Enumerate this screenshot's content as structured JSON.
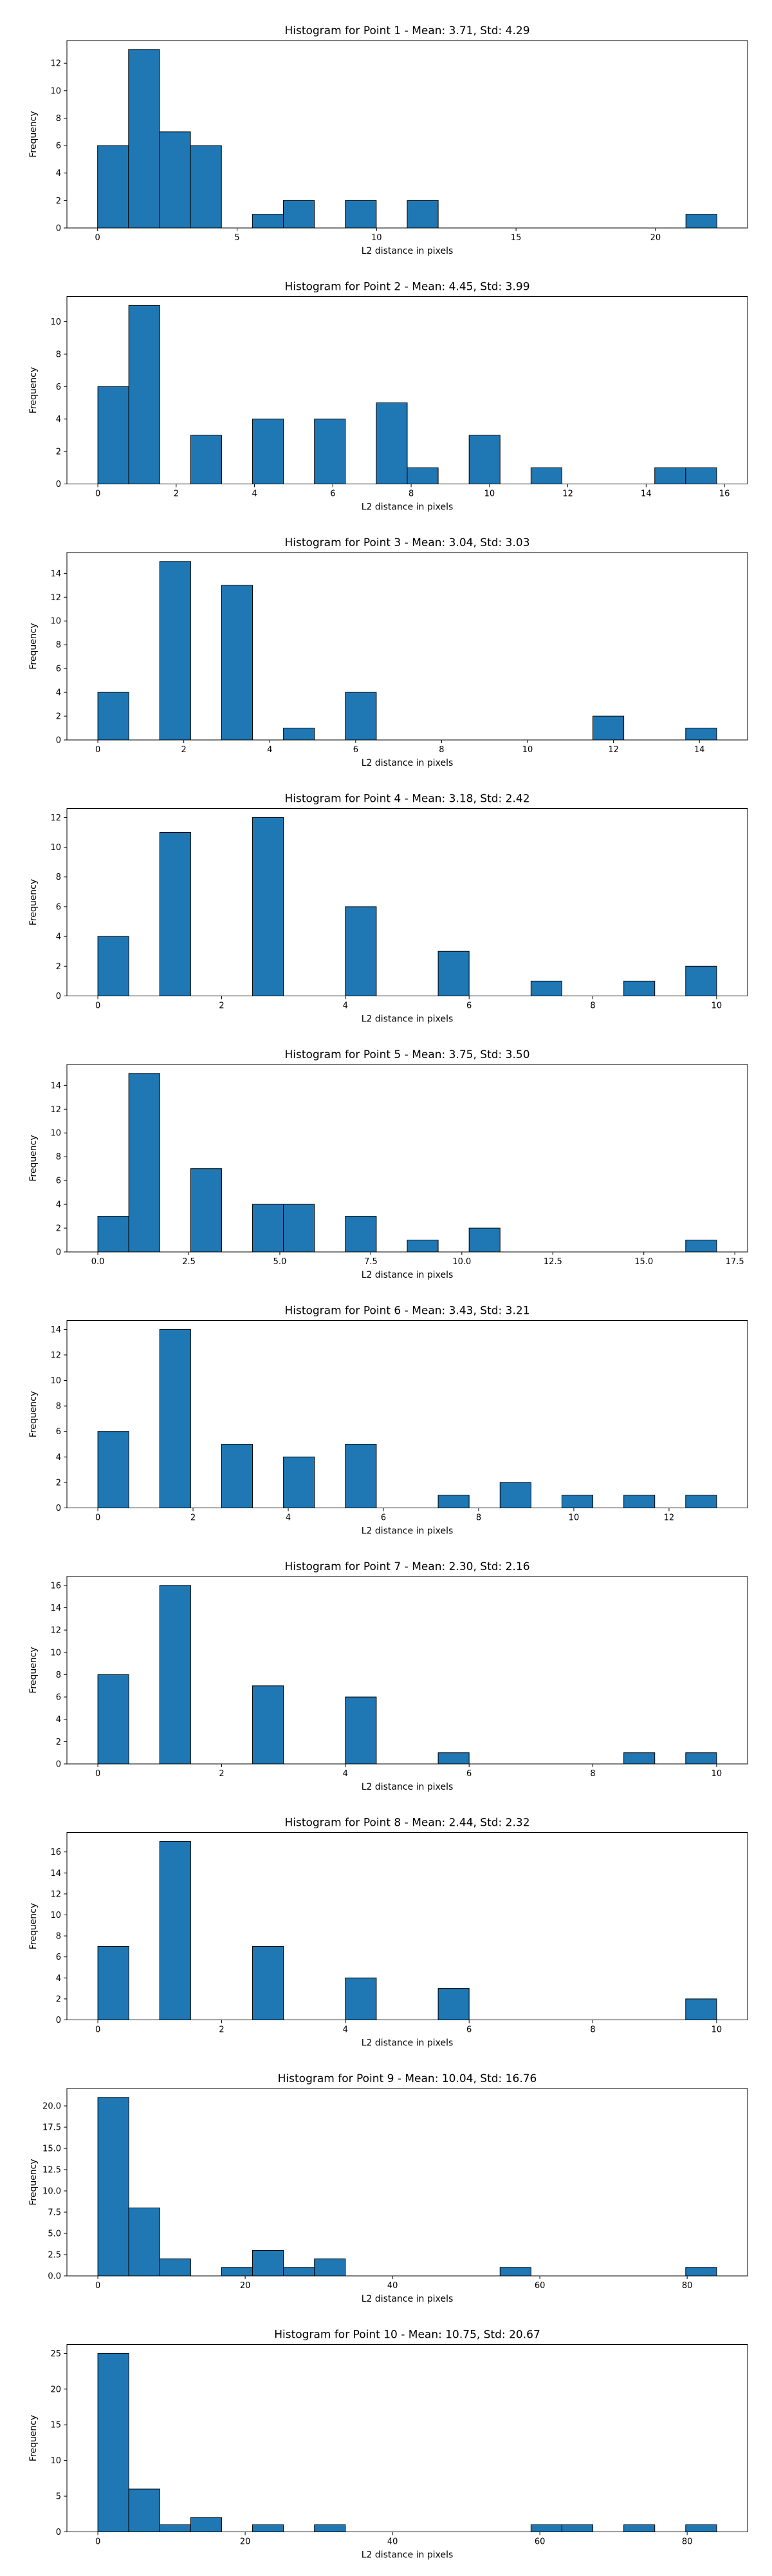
{
  "figure": {
    "colors": {
      "bar_fill": "#1f77b4",
      "bar_edge": "#000000",
      "background": "#ffffff"
    }
  },
  "chart_data": [
    {
      "type": "bar",
      "title": "Histogram for Point 1 - Mean: 3.71, Std: 4.29",
      "xlabel": "L2 distance in pixels",
      "ylabel": "Frequency",
      "xlim": [
        -1.1,
        23.3
      ],
      "ylim": [
        0,
        13.65
      ],
      "xticks": [
        0,
        5,
        10,
        15,
        20
      ],
      "xtick_labels": [
        "0",
        "5",
        "10",
        "15",
        "20"
      ],
      "yticks": [
        0,
        2,
        4,
        6,
        8,
        10,
        12
      ],
      "ytick_labels": [
        "0",
        "2",
        "4",
        "6",
        "8",
        "10",
        "12"
      ],
      "bins": [
        {
          "start": 0.0,
          "end": 1.11,
          "count": 6
        },
        {
          "start": 1.11,
          "end": 2.22,
          "count": 13
        },
        {
          "start": 2.22,
          "end": 3.33,
          "count": 7
        },
        {
          "start": 3.33,
          "end": 4.44,
          "count": 6
        },
        {
          "start": 5.55,
          "end": 6.66,
          "count": 1
        },
        {
          "start": 6.66,
          "end": 7.77,
          "count": 2
        },
        {
          "start": 8.88,
          "end": 9.99,
          "count": 2
        },
        {
          "start": 11.1,
          "end": 12.21,
          "count": 2
        },
        {
          "start": 21.09,
          "end": 22.2,
          "count": 1
        }
      ]
    },
    {
      "type": "bar",
      "title": "Histogram for Point 2 - Mean: 4.45, Std: 3.99",
      "xlabel": "L2 distance in pixels",
      "ylabel": "Frequency",
      "xlim": [
        -0.79,
        16.59
      ],
      "ylim": [
        0,
        11.55
      ],
      "xticks": [
        0,
        2,
        4,
        6,
        8,
        10,
        12,
        14,
        16
      ],
      "xtick_labels": [
        "0",
        "2",
        "4",
        "6",
        "8",
        "10",
        "12",
        "14",
        "16"
      ],
      "yticks": [
        0,
        2,
        4,
        6,
        8,
        10
      ],
      "ytick_labels": [
        "0",
        "2",
        "4",
        "6",
        "8",
        "10"
      ],
      "bins": [
        {
          "start": 0.0,
          "end": 0.79,
          "count": 6
        },
        {
          "start": 0.79,
          "end": 1.58,
          "count": 11
        },
        {
          "start": 2.37,
          "end": 3.16,
          "count": 3
        },
        {
          "start": 3.95,
          "end": 4.74,
          "count": 4
        },
        {
          "start": 5.53,
          "end": 6.32,
          "count": 4
        },
        {
          "start": 7.11,
          "end": 7.9,
          "count": 5
        },
        {
          "start": 7.9,
          "end": 8.69,
          "count": 1
        },
        {
          "start": 9.48,
          "end": 10.27,
          "count": 3
        },
        {
          "start": 11.06,
          "end": 11.85,
          "count": 1
        },
        {
          "start": 14.22,
          "end": 15.01,
          "count": 1
        },
        {
          "start": 15.01,
          "end": 15.8,
          "count": 1
        }
      ]
    },
    {
      "type": "bar",
      "title": "Histogram for Point 3 - Mean: 3.04, Std: 3.03",
      "xlabel": "L2 distance in pixels",
      "ylabel": "Frequency",
      "xlim": [
        -0.72,
        15.12
      ],
      "ylim": [
        0,
        15.75
      ],
      "xticks": [
        0,
        2,
        4,
        6,
        8,
        10,
        12,
        14
      ],
      "xtick_labels": [
        "0",
        "2",
        "4",
        "6",
        "8",
        "10",
        "12",
        "14"
      ],
      "yticks": [
        0,
        2,
        4,
        6,
        8,
        10,
        12,
        14
      ],
      "ytick_labels": [
        "0",
        "2",
        "4",
        "6",
        "8",
        "10",
        "12",
        "14"
      ],
      "bins": [
        {
          "start": 0.0,
          "end": 0.72,
          "count": 4
        },
        {
          "start": 1.44,
          "end": 2.16,
          "count": 15
        },
        {
          "start": 2.88,
          "end": 3.6,
          "count": 13
        },
        {
          "start": 4.32,
          "end": 5.04,
          "count": 1
        },
        {
          "start": 5.76,
          "end": 6.48,
          "count": 4
        },
        {
          "start": 11.52,
          "end": 12.24,
          "count": 2
        },
        {
          "start": 13.68,
          "end": 14.4,
          "count": 1
        }
      ]
    },
    {
      "type": "bar",
      "title": "Histogram for Point 4 - Mean: 3.18, Std: 2.42",
      "xlabel": "L2 distance in pixels",
      "ylabel": "Frequency",
      "xlim": [
        -0.5,
        10.5
      ],
      "ylim": [
        0,
        12.6
      ],
      "xticks": [
        0,
        2,
        4,
        6,
        8,
        10
      ],
      "xtick_labels": [
        "0",
        "2",
        "4",
        "6",
        "8",
        "10"
      ],
      "yticks": [
        0,
        2,
        4,
        6,
        8,
        10,
        12
      ],
      "ytick_labels": [
        "0",
        "2",
        "4",
        "6",
        "8",
        "10",
        "12"
      ],
      "bins": [
        {
          "start": 0.0,
          "end": 0.5,
          "count": 4
        },
        {
          "start": 1.0,
          "end": 1.5,
          "count": 11
        },
        {
          "start": 2.5,
          "end": 3.0,
          "count": 12
        },
        {
          "start": 4.0,
          "end": 4.5,
          "count": 6
        },
        {
          "start": 5.5,
          "end": 6.0,
          "count": 3
        },
        {
          "start": 7.0,
          "end": 7.5,
          "count": 1
        },
        {
          "start": 8.5,
          "end": 9.0,
          "count": 1
        },
        {
          "start": 9.5,
          "end": 10.0,
          "count": 2
        }
      ]
    },
    {
      "type": "bar",
      "title": "Histogram for Point 5 - Mean: 3.75, Std: 3.50",
      "xlabel": "L2 distance in pixels",
      "ylabel": "Frequency",
      "xlim": [
        -0.85,
        17.85
      ],
      "ylim": [
        0,
        15.75
      ],
      "xticks": [
        0,
        2.5,
        5,
        7.5,
        10,
        12.5,
        15,
        17.5
      ],
      "xtick_labels": [
        "0.0",
        "2.5",
        "5.0",
        "7.5",
        "10.0",
        "12.5",
        "15.0",
        "17.5"
      ],
      "yticks": [
        0,
        2,
        4,
        6,
        8,
        10,
        12,
        14
      ],
      "ytick_labels": [
        "0",
        "2",
        "4",
        "6",
        "8",
        "10",
        "12",
        "14"
      ],
      "bins": [
        {
          "start": 0.0,
          "end": 0.85,
          "count": 3
        },
        {
          "start": 0.85,
          "end": 1.7,
          "count": 15
        },
        {
          "start": 2.55,
          "end": 3.4,
          "count": 7
        },
        {
          "start": 4.25,
          "end": 5.1,
          "count": 4
        },
        {
          "start": 5.1,
          "end": 5.95,
          "count": 4
        },
        {
          "start": 6.8,
          "end": 7.65,
          "count": 3
        },
        {
          "start": 8.5,
          "end": 9.35,
          "count": 1
        },
        {
          "start": 10.2,
          "end": 11.05,
          "count": 2
        },
        {
          "start": 16.15,
          "end": 17.0,
          "count": 1
        }
      ]
    },
    {
      "type": "bar",
      "title": "Histogram for Point 6 - Mean: 3.43, Std: 3.21",
      "xlabel": "L2 distance in pixels",
      "ylabel": "Frequency",
      "xlim": [
        -0.65,
        13.65
      ],
      "ylim": [
        0,
        14.7
      ],
      "xticks": [
        0,
        2,
        4,
        6,
        8,
        10,
        12
      ],
      "xtick_labels": [
        "0",
        "2",
        "4",
        "6",
        "8",
        "10",
        "12"
      ],
      "yticks": [
        0,
        2,
        4,
        6,
        8,
        10,
        12,
        14
      ],
      "ytick_labels": [
        "0",
        "2",
        "4",
        "6",
        "8",
        "10",
        "12",
        "14"
      ],
      "bins": [
        {
          "start": 0.0,
          "end": 0.65,
          "count": 6
        },
        {
          "start": 1.3,
          "end": 1.95,
          "count": 14
        },
        {
          "start": 2.6,
          "end": 3.25,
          "count": 5
        },
        {
          "start": 3.9,
          "end": 4.55,
          "count": 4
        },
        {
          "start": 5.2,
          "end": 5.85,
          "count": 5
        },
        {
          "start": 7.15,
          "end": 7.8,
          "count": 1
        },
        {
          "start": 8.45,
          "end": 9.1,
          "count": 2
        },
        {
          "start": 9.75,
          "end": 10.4,
          "count": 1
        },
        {
          "start": 11.05,
          "end": 11.7,
          "count": 1
        },
        {
          "start": 12.35,
          "end": 13.0,
          "count": 1
        }
      ]
    },
    {
      "type": "bar",
      "title": "Histogram for Point 7 - Mean: 2.30, Std: 2.16",
      "xlabel": "L2 distance in pixels",
      "ylabel": "Frequency",
      "xlim": [
        -0.5,
        10.5
      ],
      "ylim": [
        0,
        16.8
      ],
      "xticks": [
        0,
        2,
        4,
        6,
        8,
        10
      ],
      "xtick_labels": [
        "0",
        "2",
        "4",
        "6",
        "8",
        "10"
      ],
      "yticks": [
        0,
        2,
        4,
        6,
        8,
        10,
        12,
        14,
        16
      ],
      "ytick_labels": [
        "0",
        "2",
        "4",
        "6",
        "8",
        "10",
        "12",
        "14",
        "16"
      ],
      "bins": [
        {
          "start": 0.0,
          "end": 0.5,
          "count": 8
        },
        {
          "start": 1.0,
          "end": 1.5,
          "count": 16
        },
        {
          "start": 2.5,
          "end": 3.0,
          "count": 7
        },
        {
          "start": 4.0,
          "end": 4.5,
          "count": 6
        },
        {
          "start": 5.5,
          "end": 6.0,
          "count": 1
        },
        {
          "start": 8.5,
          "end": 9.0,
          "count": 1
        },
        {
          "start": 9.5,
          "end": 10.0,
          "count": 1
        }
      ]
    },
    {
      "type": "bar",
      "title": "Histogram for Point 8 - Mean: 2.44, Std: 2.32",
      "xlabel": "L2 distance in pixels",
      "ylabel": "Frequency",
      "xlim": [
        -0.5,
        10.5
      ],
      "ylim": [
        0,
        17.85
      ],
      "xticks": [
        0,
        2,
        4,
        6,
        8,
        10
      ],
      "xtick_labels": [
        "0",
        "2",
        "4",
        "6",
        "8",
        "10"
      ],
      "yticks": [
        0,
        2,
        4,
        6,
        8,
        10,
        12,
        14,
        16
      ],
      "ytick_labels": [
        "0",
        "2",
        "4",
        "6",
        "8",
        "10",
        "12",
        "14",
        "16"
      ],
      "bins": [
        {
          "start": 0.0,
          "end": 0.5,
          "count": 7
        },
        {
          "start": 1.0,
          "end": 1.5,
          "count": 17
        },
        {
          "start": 2.5,
          "end": 3.0,
          "count": 7
        },
        {
          "start": 4.0,
          "end": 4.5,
          "count": 4
        },
        {
          "start": 5.5,
          "end": 6.0,
          "count": 3
        },
        {
          "start": 9.5,
          "end": 10.0,
          "count": 2
        }
      ]
    },
    {
      "type": "bar",
      "title": "Histogram for Point 9 - Mean: 10.04, Std: 16.76",
      "xlabel": "L2 distance in pixels",
      "ylabel": "Frequency",
      "xlim": [
        -4.2,
        88.2
      ],
      "ylim": [
        0,
        22.05
      ],
      "xticks": [
        0,
        20,
        40,
        60,
        80
      ],
      "xtick_labels": [
        "0",
        "20",
        "40",
        "60",
        "80"
      ],
      "yticks": [
        0,
        2.5,
        5,
        7.5,
        10,
        12.5,
        15,
        17.5,
        20
      ],
      "ytick_labels": [
        "0.0",
        "2.5",
        "5.0",
        "7.5",
        "10.0",
        "12.5",
        "15.0",
        "17.5",
        "20.0"
      ],
      "bins": [
        {
          "start": 0.0,
          "end": 4.2,
          "count": 21
        },
        {
          "start": 4.2,
          "end": 8.4,
          "count": 8
        },
        {
          "start": 8.4,
          "end": 12.6,
          "count": 2
        },
        {
          "start": 16.8,
          "end": 21.0,
          "count": 1
        },
        {
          "start": 21.0,
          "end": 25.2,
          "count": 3
        },
        {
          "start": 25.2,
          "end": 29.4,
          "count": 1
        },
        {
          "start": 29.4,
          "end": 33.6,
          "count": 2
        },
        {
          "start": 54.6,
          "end": 58.8,
          "count": 1
        },
        {
          "start": 79.8,
          "end": 84.0,
          "count": 1
        }
      ]
    },
    {
      "type": "bar",
      "title": "Histogram for Point 10 - Mean: 10.75, Std: 20.67",
      "xlabel": "L2 distance in pixels",
      "ylabel": "Frequency",
      "xlim": [
        -4.2,
        88.2
      ],
      "ylim": [
        0,
        26.25
      ],
      "xticks": [
        0,
        20,
        40,
        60,
        80
      ],
      "xtick_labels": [
        "0",
        "20",
        "40",
        "60",
        "80"
      ],
      "yticks": [
        0,
        5,
        10,
        15,
        20,
        25
      ],
      "ytick_labels": [
        "0",
        "5",
        "10",
        "15",
        "20",
        "25"
      ],
      "bins": [
        {
          "start": 0.0,
          "end": 4.2,
          "count": 25
        },
        {
          "start": 4.2,
          "end": 8.4,
          "count": 6
        },
        {
          "start": 8.4,
          "end": 12.6,
          "count": 1
        },
        {
          "start": 12.6,
          "end": 16.8,
          "count": 2
        },
        {
          "start": 21.0,
          "end": 25.2,
          "count": 1
        },
        {
          "start": 29.4,
          "end": 33.6,
          "count": 1
        },
        {
          "start": 58.8,
          "end": 63.0,
          "count": 1
        },
        {
          "start": 63.0,
          "end": 67.2,
          "count": 1
        },
        {
          "start": 71.4,
          "end": 75.6,
          "count": 1
        },
        {
          "start": 79.8,
          "end": 84.0,
          "count": 1
        }
      ]
    }
  ]
}
